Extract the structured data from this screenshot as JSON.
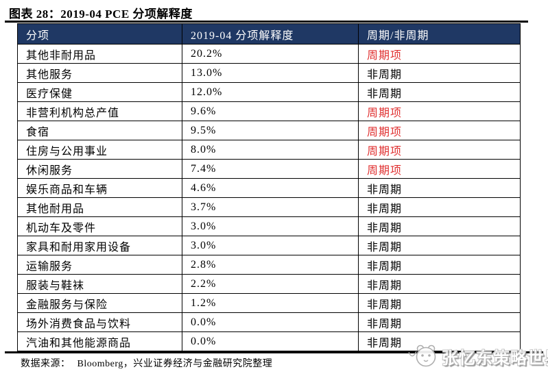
{
  "title": "图表 28：2019-04 PCE 分项解释度",
  "table": {
    "headers": [
      "分项",
      "2019-04 分项解释度",
      "周期/非周期"
    ],
    "rows": [
      {
        "category": "其他非耐用品",
        "value": "20.2%",
        "type": "周期项",
        "cyclical": true
      },
      {
        "category": "其他服务",
        "value": "13.0%",
        "type": "非周期",
        "cyclical": false
      },
      {
        "category": "医疗保健",
        "value": "12.0%",
        "type": "非周期",
        "cyclical": false
      },
      {
        "category": "非营利机构总产值",
        "value": "9.6%",
        "type": "周期项",
        "cyclical": true
      },
      {
        "category": "食宿",
        "value": "9.5%",
        "type": "周期项",
        "cyclical": true
      },
      {
        "category": "住房与公用事业",
        "value": "8.0%",
        "type": "周期项",
        "cyclical": true
      },
      {
        "category": "休闲服务",
        "value": "7.4%",
        "type": "周期项",
        "cyclical": true
      },
      {
        "category": "娱乐商品和车辆",
        "value": "4.6%",
        "type": "非周期",
        "cyclical": false
      },
      {
        "category": "其他耐用品",
        "value": "3.7%",
        "type": "非周期",
        "cyclical": false
      },
      {
        "category": "机动车及零件",
        "value": "3.0%",
        "type": "非周期",
        "cyclical": false
      },
      {
        "category": "家具和耐用家用设备",
        "value": "3.0%",
        "type": "非周期",
        "cyclical": false
      },
      {
        "category": "运输服务",
        "value": "2.8%",
        "type": "非周期",
        "cyclical": false
      },
      {
        "category": "服装与鞋袜",
        "value": "2.2%",
        "type": "非周期",
        "cyclical": false
      },
      {
        "category": "金融服务与保险",
        "value": "1.2%",
        "type": "非周期",
        "cyclical": false
      },
      {
        "category": "场外消费食品与饮料",
        "value": "0.0%",
        "type": "非周期",
        "cyclical": false
      },
      {
        "category": "汽油和其他能源商品",
        "value": "0.0%",
        "type": "非周期",
        "cyclical": false
      }
    ]
  },
  "footer": {
    "source_label": "数据来源：",
    "source_text": "Bloomberg，兴业证券经济与金融研究院整理"
  },
  "watermark": {
    "text": "张忆东策略世界",
    "logo": "panda-face-logo"
  },
  "colors": {
    "header_bg": "#1F3864",
    "header_fg": "#FFFFFF",
    "cyclical_red": "#E03030",
    "body_text": "#000000"
  },
  "chart_data": {
    "type": "table",
    "title": "2019-04 PCE 分项解释度",
    "columns": [
      "分项",
      "2019-04 分项解释度",
      "周期/非周期"
    ],
    "categories": [
      "其他非耐用品",
      "其他服务",
      "医疗保健",
      "非营利机构总产值",
      "食宿",
      "住房与公用事业",
      "休闲服务",
      "娱乐商品和车辆",
      "其他耐用品",
      "机动车及零件",
      "家具和耐用家用设备",
      "运输服务",
      "服装与鞋袜",
      "金融服务与保险",
      "场外消费食品与饮料",
      "汽油和其他能源商品"
    ],
    "values_pct": [
      20.2,
      13.0,
      12.0,
      9.6,
      9.5,
      8.0,
      7.4,
      4.6,
      3.7,
      3.0,
      3.0,
      2.8,
      2.2,
      1.2,
      0.0,
      0.0
    ],
    "classification": [
      "周期项",
      "非周期",
      "非周期",
      "周期项",
      "周期项",
      "周期项",
      "周期项",
      "非周期",
      "非周期",
      "非周期",
      "非周期",
      "非周期",
      "非周期",
      "非周期",
      "非周期",
      "非周期"
    ]
  }
}
